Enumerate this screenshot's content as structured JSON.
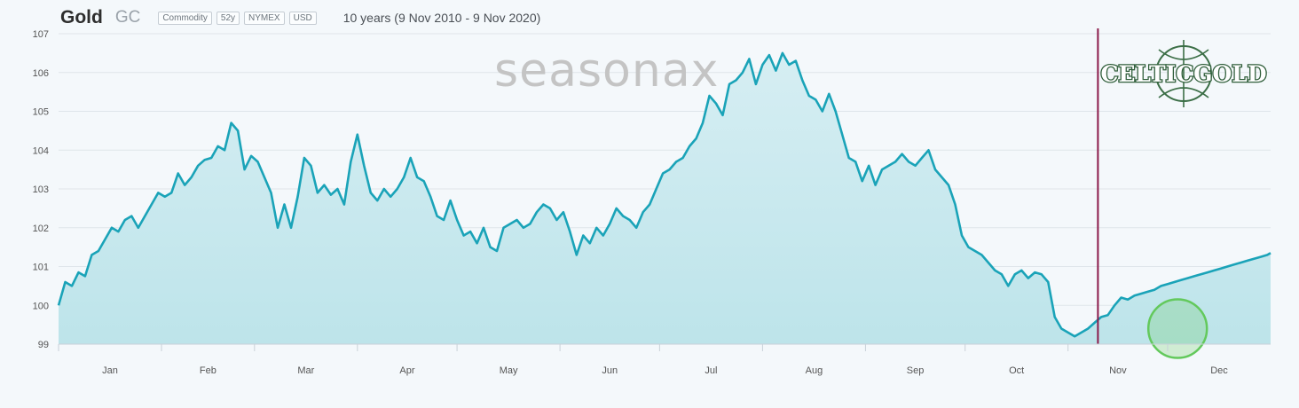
{
  "header": {
    "title": "Gold",
    "symbol": "GC",
    "tags": [
      "Commodity",
      "52y",
      "NYMEX",
      "USD"
    ],
    "range": "10 years (9 Nov 2010 - 9 Nov 2020)"
  },
  "watermark": "seasonax",
  "logo": {
    "text": "CELTICGOLD"
  },
  "colors": {
    "line": "#1aa3b8",
    "area_top": "#d6eef3",
    "area_bottom": "#bde4ea",
    "marker": "#8b1a4a",
    "highlight": "#63c95c"
  },
  "chart_data": {
    "type": "area",
    "title": "",
    "xlabel": "",
    "ylabel": "",
    "ylim": [
      99,
      107
    ],
    "yticks": [
      99,
      100,
      101,
      102,
      103,
      104,
      105,
      106,
      107
    ],
    "grid": "horizontal",
    "xlim": [
      0,
      365
    ],
    "months": [
      "Jan",
      "Feb",
      "Mar",
      "Apr",
      "May",
      "Jun",
      "Jul",
      "Aug",
      "Sep",
      "Oct",
      "Nov",
      "Dec"
    ],
    "month_starts": [
      0,
      31,
      59,
      90,
      120,
      151,
      181,
      212,
      243,
      273,
      304,
      334
    ],
    "current_marker_day": 313,
    "highlight_day": 337,
    "highlight_value": 99.4,
    "series": [
      {
        "x": [
          0,
          2,
          4,
          6,
          8,
          10,
          12,
          14,
          16,
          18,
          20,
          22,
          24,
          26,
          28,
          30,
          32,
          34,
          36,
          38,
          40,
          42,
          44,
          46,
          48,
          50,
          52,
          54,
          56,
          58,
          60,
          62,
          64,
          66,
          68,
          70,
          72,
          74,
          76,
          78,
          80,
          82,
          84,
          86,
          88,
          90,
          92,
          94,
          96,
          98,
          100,
          102,
          104,
          106,
          108,
          110,
          112,
          114,
          116,
          118,
          120,
          122,
          124,
          126,
          128,
          130,
          132,
          134,
          136,
          138,
          140,
          142,
          144,
          146,
          148,
          150,
          152,
          154,
          156,
          158,
          160,
          162,
          164,
          166,
          168,
          170,
          172,
          174,
          176,
          178,
          180,
          182,
          184,
          186,
          188,
          190,
          192,
          194,
          196,
          198,
          200,
          202,
          204,
          206,
          208,
          210,
          212,
          214,
          216,
          218,
          220,
          222,
          224,
          226,
          228,
          230,
          232,
          234,
          236,
          238,
          240,
          242,
          244,
          246,
          248,
          250,
          252,
          254,
          256,
          258,
          260,
          262,
          264,
          266,
          268,
          270,
          272,
          274,
          276,
          278,
          280,
          282,
          284,
          286,
          288,
          290,
          292,
          294,
          296,
          298,
          300,
          302,
          304,
          306,
          308,
          310,
          312,
          314,
          316,
          318,
          320,
          322,
          324,
          326,
          328,
          330,
          332,
          334,
          336,
          338,
          340,
          342,
          344,
          346,
          348,
          350,
          352,
          354,
          356,
          358,
          360,
          362,
          364,
          365
        ],
        "values": [
          100.0,
          100.6,
          100.5,
          100.85,
          100.75,
          101.3,
          101.4,
          101.7,
          102.0,
          101.9,
          102.2,
          102.3,
          102.0,
          102.3,
          102.6,
          102.9,
          102.8,
          102.9,
          103.4,
          103.1,
          103.3,
          103.6,
          103.75,
          103.8,
          104.1,
          104.0,
          104.7,
          104.5,
          103.5,
          103.85,
          103.7,
          103.3,
          102.9,
          102.0,
          102.6,
          102.0,
          102.8,
          103.8,
          103.6,
          102.9,
          103.1,
          102.85,
          103.0,
          102.6,
          103.7,
          104.4,
          103.6,
          102.9,
          102.7,
          103.0,
          102.8,
          103.0,
          103.3,
          103.8,
          103.3,
          103.2,
          102.8,
          102.3,
          102.2,
          102.7,
          102.2,
          101.8,
          101.9,
          101.6,
          102.0,
          101.5,
          101.4,
          102.0,
          102.1,
          102.2,
          102.0,
          102.1,
          102.4,
          102.6,
          102.5,
          102.2,
          102.4,
          101.9,
          101.3,
          101.8,
          101.6,
          102.0,
          101.8,
          102.1,
          102.5,
          102.3,
          102.2,
          102.0,
          102.4,
          102.6,
          103.0,
          103.4,
          103.5,
          103.7,
          103.8,
          104.1,
          104.3,
          104.7,
          105.4,
          105.2,
          104.9,
          105.7,
          105.8,
          106.0,
          106.35,
          105.7,
          106.2,
          106.45,
          106.05,
          106.5,
          106.2,
          106.3,
          105.8,
          105.4,
          105.3,
          105.0,
          105.45,
          105.0,
          104.4,
          103.8,
          103.7,
          103.2,
          103.6,
          103.1,
          103.5,
          103.6,
          103.7,
          103.9,
          103.7,
          103.6,
          103.8,
          104.0,
          103.5,
          103.3,
          103.1,
          102.6,
          101.8,
          101.5,
          101.4,
          101.3,
          101.1,
          100.9,
          100.8,
          100.5,
          100.8,
          100.9,
          100.7,
          100.85,
          100.8,
          100.6,
          99.7,
          99.4,
          99.3,
          99.2,
          99.3,
          99.4,
          99.55,
          99.7,
          99.75,
          100.0,
          100.2,
          100.15,
          100.25,
          100.3,
          100.35,
          100.4,
          100.5,
          100.55,
          100.6,
          100.65,
          100.7,
          100.75,
          100.8,
          100.85,
          100.9,
          100.95,
          101.0,
          101.05,
          101.1,
          101.15,
          101.2,
          101.25,
          101.3,
          101.35
        ]
      }
    ]
  }
}
